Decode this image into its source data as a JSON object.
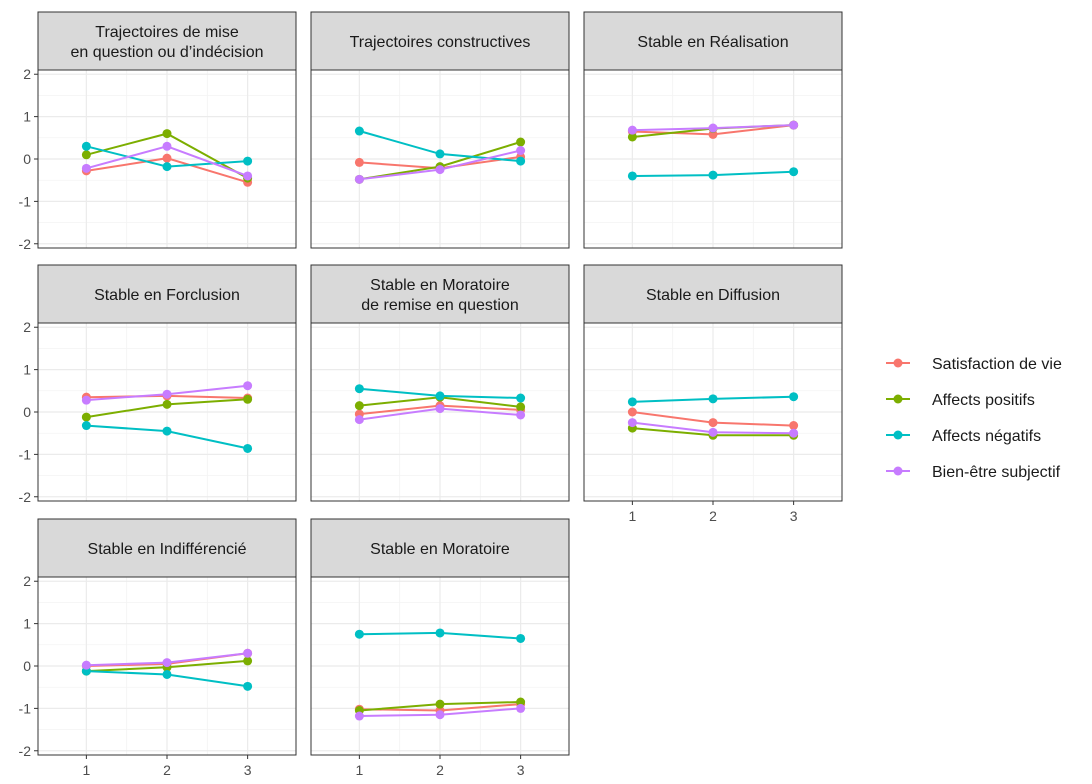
{
  "chart_data": {
    "type": "line",
    "layout": "facet-grid",
    "x": [
      1,
      2,
      3
    ],
    "x_ticks": [
      "1",
      "2",
      "3"
    ],
    "ylim": [
      -2.1,
      2.1
    ],
    "y_ticks": [
      -2,
      -1,
      0,
      1,
      2
    ],
    "y_tick_labels": [
      "-2",
      "-1",
      "0",
      "1",
      "2"
    ],
    "grid": true,
    "legend_position": "right",
    "series_meta": [
      {
        "name": "Satisfaction de vie",
        "color": "#F8766D"
      },
      {
        "name": "Affects positifs",
        "color": "#7CAE00"
      },
      {
        "name": "Affects négatifs",
        "color": "#00BFC4"
      },
      {
        "name": "Bien-être subjectif",
        "color": "#C77CFF"
      }
    ],
    "panels": [
      {
        "title_lines": [
          "Trajectoires de mise",
          "en question ou d’indécision"
        ],
        "values": [
          [
            -0.28,
            0.02,
            -0.55
          ],
          [
            0.1,
            0.6,
            -0.45
          ],
          [
            0.3,
            -0.18,
            -0.05
          ],
          [
            -0.22,
            0.3,
            -0.4
          ]
        ]
      },
      {
        "title_lines": [
          "Trajectoires constructives"
        ],
        "values": [
          [
            -0.08,
            -0.22,
            0.05
          ],
          [
            -0.48,
            -0.18,
            0.4
          ],
          [
            0.66,
            0.12,
            -0.05
          ],
          [
            -0.48,
            -0.25,
            0.2
          ]
        ]
      },
      {
        "title_lines": [
          "Stable en Réalisation"
        ],
        "values": [
          [
            0.65,
            0.58,
            0.8
          ],
          [
            0.52,
            0.72,
            0.8
          ],
          [
            -0.4,
            -0.38,
            -0.3
          ],
          [
            0.68,
            0.73,
            0.8
          ]
        ]
      },
      {
        "title_lines": [
          "Stable en Forclusion"
        ],
        "values": [
          [
            0.35,
            0.38,
            0.33
          ],
          [
            -0.12,
            0.18,
            0.3
          ],
          [
            -0.32,
            -0.45,
            -0.86
          ],
          [
            0.28,
            0.42,
            0.62
          ]
        ]
      },
      {
        "title_lines": [
          "Stable en Moratoire",
          "de remise en question"
        ],
        "values": [
          [
            -0.05,
            0.15,
            0.05
          ],
          [
            0.15,
            0.35,
            0.12
          ],
          [
            0.55,
            0.38,
            0.33
          ],
          [
            -0.18,
            0.08,
            -0.07
          ]
        ]
      },
      {
        "title_lines": [
          "Stable en Diffusion"
        ],
        "values": [
          [
            0.0,
            -0.25,
            -0.32
          ],
          [
            -0.38,
            -0.55,
            -0.55
          ],
          [
            0.24,
            0.31,
            0.36
          ],
          [
            -0.25,
            -0.48,
            -0.5
          ]
        ]
      },
      {
        "title_lines": [
          "Stable en Indifférencié"
        ],
        "values": [
          [
            0.0,
            0.05,
            0.3
          ],
          [
            -0.12,
            -0.03,
            0.12
          ],
          [
            -0.12,
            -0.2,
            -0.48
          ],
          [
            0.02,
            0.08,
            0.3
          ]
        ]
      },
      {
        "title_lines": [
          "Stable en Moratoire"
        ],
        "values": [
          [
            -1.02,
            -1.05,
            -0.9
          ],
          [
            -1.05,
            -0.9,
            -0.85
          ],
          [
            0.75,
            0.78,
            0.65
          ],
          [
            -1.18,
            -1.15,
            -1.0
          ]
        ]
      }
    ]
  }
}
